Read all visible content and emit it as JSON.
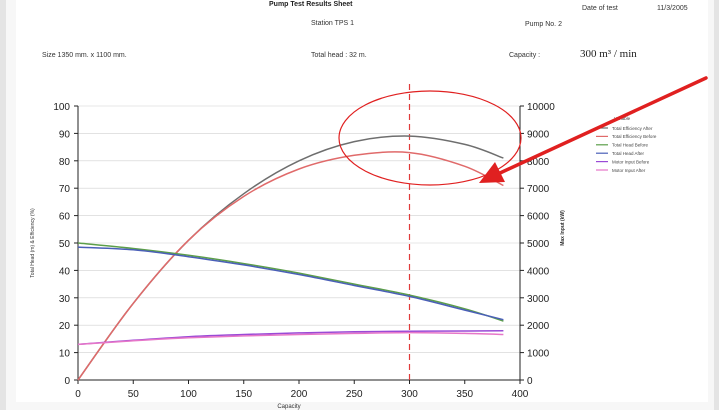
{
  "header": {
    "title": "Pump Test Results Sheet",
    "date_label": "Date of test",
    "date_value": "11/3/2005",
    "station": "Station TPS 1",
    "pump_no": "Pump No. 2",
    "size": "Size  1350 mm. x 1100 mm.",
    "total_head": "Total head :    32 m.",
    "capacity_label": "Capacity :",
    "capacity_value": "300 m³ / min"
  },
  "chart_data": {
    "type": "line",
    "xlabel": "Capacity",
    "ylabel": "Total Head (m) & Efficiency (%)",
    "y2label": "Max Input (kW)",
    "xlim": [
      0,
      400
    ],
    "ylim": [
      0,
      100
    ],
    "y2lim": [
      0,
      10000
    ],
    "xticks": [
      0,
      50,
      100,
      150,
      200,
      250,
      300,
      350,
      400
    ],
    "yticks": [
      0,
      10,
      20,
      30,
      40,
      50,
      60,
      70,
      80,
      90,
      100
    ],
    "y2ticks": [
      0,
      1000,
      2000,
      3000,
      4000,
      5000,
      6000,
      7000,
      8000,
      9000,
      10000
    ],
    "reference_line_x": 300,
    "legend_title": "Variable",
    "legend_position": "right",
    "series": [
      {
        "name": "Total Efficiency After",
        "color": "#6e6e6e",
        "x": [
          0,
          50,
          100,
          150,
          200,
          250,
          300,
          350,
          385
        ],
        "y": [
          0,
          28,
          51,
          68,
          80,
          87,
          89,
          86,
          81
        ]
      },
      {
        "name": "Total Efficiency Before",
        "color": "#e06a6a",
        "x": [
          0,
          50,
          100,
          150,
          200,
          250,
          300,
          350,
          385
        ],
        "y": [
          0,
          28,
          51,
          67,
          77,
          82,
          83,
          78,
          71
        ]
      },
      {
        "name": "Total Head Before",
        "color": "#5c9e4a",
        "x": [
          0,
          50,
          100,
          150,
          200,
          250,
          300,
          350,
          385
        ],
        "y": [
          50,
          48,
          45.5,
          42.5,
          39,
          35,
          31,
          26,
          21.5
        ]
      },
      {
        "name": "Total Head After",
        "color": "#4a5fb8",
        "x": [
          0,
          50,
          100,
          150,
          200,
          250,
          300,
          350,
          385
        ],
        "y": [
          48.5,
          47.5,
          45,
          42,
          38.5,
          34.5,
          30.5,
          25.5,
          22
        ]
      },
      {
        "name": "Motor Input Before",
        "color": "#9a4ad6",
        "axis": "right",
        "x": [
          0,
          50,
          100,
          150,
          200,
          250,
          300,
          350,
          385
        ],
        "y": [
          1300,
          1450,
          1580,
          1660,
          1720,
          1760,
          1780,
          1790,
          1800
        ]
      },
      {
        "name": "Motor Input After",
        "color": "#e676c8",
        "axis": "right",
        "x": [
          0,
          50,
          100,
          150,
          200,
          250,
          300,
          350,
          385
        ],
        "y": [
          1300,
          1430,
          1540,
          1610,
          1660,
          1700,
          1730,
          1700,
          1660
        ]
      }
    ],
    "annotation": {
      "type": "ellipse",
      "color": "#e02020",
      "around": "efficiency peak"
    },
    "arrow": {
      "color": "#e02020",
      "points_to": "efficiency peak"
    }
  },
  "colors": {
    "grid": "#d0d0d0",
    "axis": "#222222",
    "reference_line": "#e03a3a",
    "annotation": "#e02020"
  }
}
